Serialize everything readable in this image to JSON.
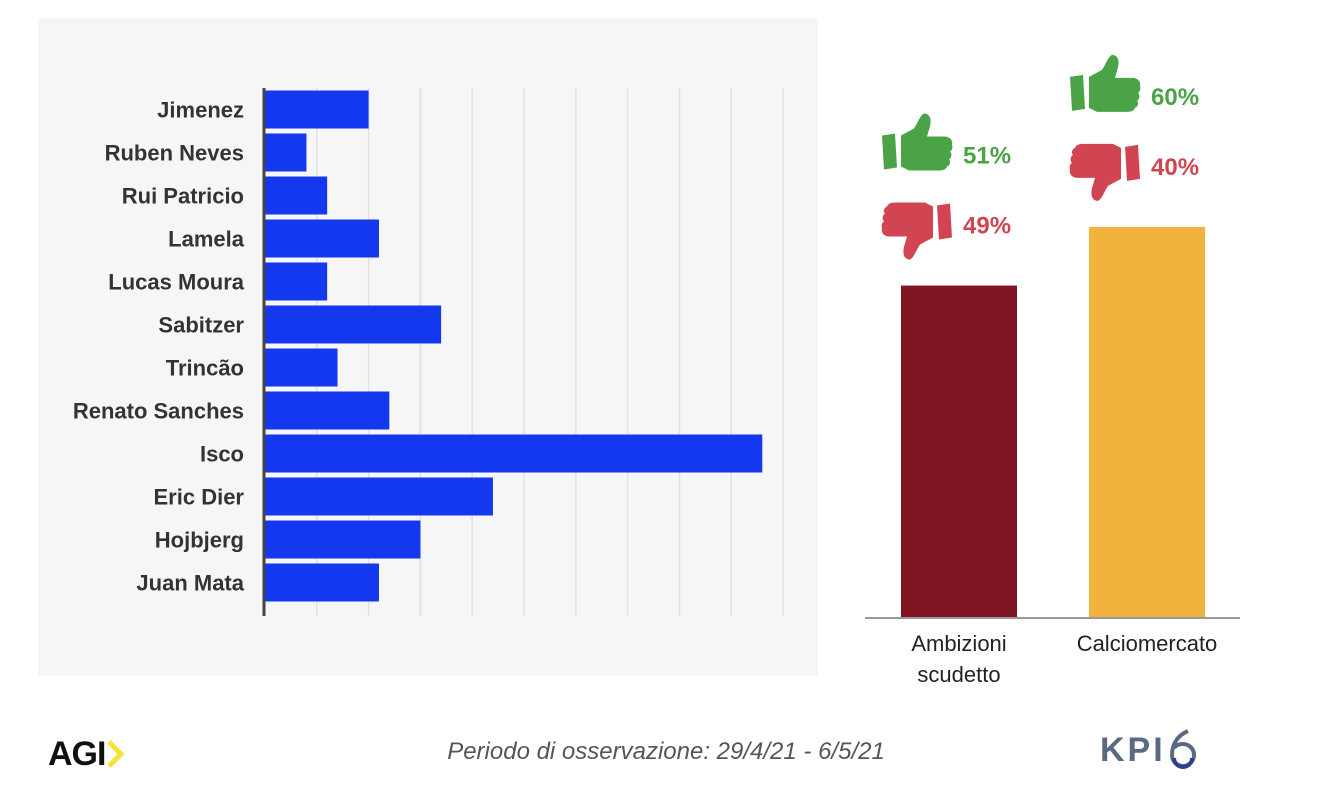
{
  "chart_data": [
    {
      "type": "bar",
      "orientation": "horizontal",
      "categories": [
        "Jimenez",
        "Ruben Neves",
        "Rui Patricio",
        "Lamela",
        "Lucas Moura",
        "Sabitzer",
        "Trincão",
        "Renato Sanches",
        "Isco",
        "Eric Dier",
        "Hojbjerg",
        "Juan Mata"
      ],
      "values": [
        2.0,
        0.8,
        1.2,
        2.2,
        1.2,
        3.4,
        1.4,
        2.4,
        9.6,
        4.4,
        3.0,
        2.2
      ],
      "xlim": [
        0,
        10
      ],
      "grid": true,
      "bar_color": "#1438f0"
    },
    {
      "type": "bar",
      "categories": [
        "Ambizioni scudetto",
        "Calciomercato"
      ],
      "category_lines": [
        [
          "Ambizioni",
          "scudetto"
        ],
        [
          "Calciomercato"
        ]
      ],
      "values": [
        51,
        60
      ],
      "negative": [
        49,
        40
      ],
      "labels_positive": [
        "51%",
        "60%"
      ],
      "labels_negative": [
        "49%",
        "40%"
      ],
      "ylim": [
        0,
        81
      ],
      "colors": [
        "#7e1520",
        "#f2b23e"
      ]
    }
  ],
  "footer": {
    "period": "Periodo di osservazione: 29/4/21 - 6/5/21",
    "left_logo": "AGI",
    "right_logo": "KPI"
  },
  "colors": {
    "positive": "#4aa447",
    "negative": "#d14552",
    "axis": "#444444",
    "grid": "#e2e2e2",
    "agi_accent": "#f5e23a"
  },
  "icons": {
    "positive": "thumbs-up-icon",
    "negative": "thumbs-down-icon"
  }
}
